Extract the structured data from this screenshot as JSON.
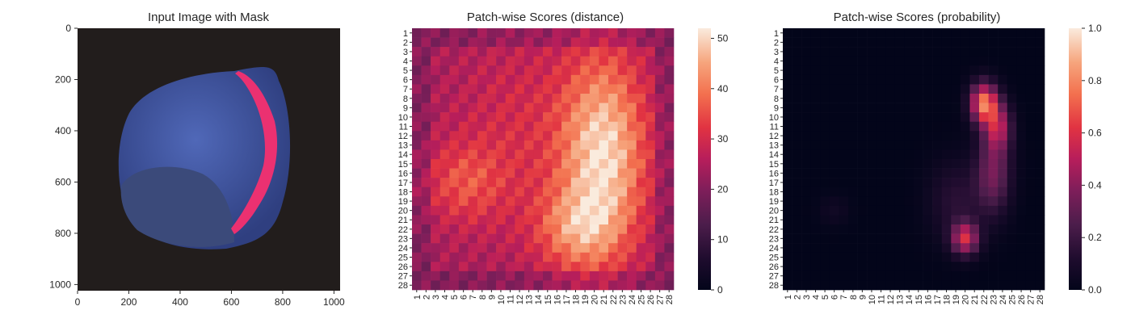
{
  "panel1": {
    "title": "Input Image with Mask",
    "x_ticks": [
      "0",
      "200",
      "400",
      "600",
      "800",
      "1000"
    ],
    "y_ticks": [
      "0",
      "200",
      "400",
      "600",
      "800",
      "1000"
    ],
    "colors": {
      "background": "#221d1c",
      "nut_body": "#3f56a8",
      "nut_base": "#3b4a7a",
      "mask": "#ff2f6e"
    }
  },
  "panel2": {
    "title": "Patch-wise Scores (distance)",
    "colorbar_ticks": [
      "0",
      "10",
      "20",
      "30",
      "40",
      "50"
    ]
  },
  "panel3": {
    "title": "Patch-wise Scores (probability)",
    "colorbar_ticks": [
      "0.0",
      "0.2",
      "0.4",
      "0.6",
      "0.8",
      "1.0"
    ]
  },
  "heatmap_labels": [
    "1",
    "2",
    "3",
    "4",
    "5",
    "6",
    "7",
    "8",
    "9",
    "10",
    "11",
    "12",
    "13",
    "14",
    "15",
    "16",
    "17",
    "18",
    "19",
    "20",
    "21",
    "22",
    "23",
    "24",
    "25",
    "26",
    "27",
    "28"
  ],
  "chart_data": [
    {
      "type": "heatmap",
      "title": "Input Image with Mask",
      "xlim": [
        0,
        1024
      ],
      "ylim": [
        1024,
        0
      ],
      "x_ticks": [
        0,
        200,
        400,
        600,
        800,
        1000
      ],
      "y_ticks": [
        0,
        200,
        400,
        600,
        800,
        1000
      ]
    },
    {
      "type": "heatmap",
      "title": "Patch-wise Scores (distance)",
      "rows": 28,
      "cols": 28,
      "vmin": 0,
      "vmax": 52,
      "colormap": "rocket",
      "colorbar_ticks": [
        0,
        10,
        20,
        30,
        40,
        50
      ]
    },
    {
      "type": "heatmap",
      "title": "Patch-wise Scores (probability)",
      "rows": 28,
      "cols": 28,
      "vmin": 0,
      "vmax": 1,
      "colormap": "rocket",
      "colorbar_ticks": [
        0.0,
        0.2,
        0.4,
        0.6,
        0.8,
        1.0
      ]
    }
  ]
}
